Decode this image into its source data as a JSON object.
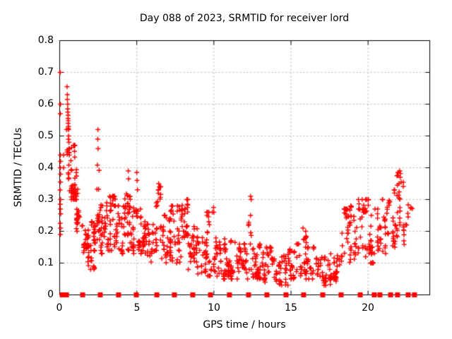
{
  "colors": {
    "marker": "#ff0000",
    "grid": "#b0b0b0",
    "axis": "#000000",
    "background": "#ffffff",
    "text": "#000000"
  },
  "chart_data": {
    "type": "scatter",
    "title": "Day 088 of 2023, SRMTID for receiver lord",
    "xlabel": "GPS time / hours",
    "ylabel": "SRMTID / TECUs",
    "xlim": [
      0,
      24
    ],
    "ylim": [
      0,
      0.8
    ],
    "x_ticks": [
      0,
      5,
      10,
      15,
      20
    ],
    "x_tick_labels": [
      "0",
      "5",
      "10",
      "15",
      "20"
    ],
    "y_ticks": [
      0,
      0.1,
      0.2,
      0.3,
      0.4,
      0.5,
      0.6,
      0.7,
      0.8
    ],
    "y_tick_labels": [
      "0",
      "0.1",
      "0.2",
      "0.3",
      "0.4",
      "0.5",
      "0.6",
      "0.7",
      "0.8"
    ],
    "grid": true,
    "grid_x": [
      5,
      10,
      15,
      20
    ],
    "grid_y": [
      0.1,
      0.2,
      0.3,
      0.4,
      0.5,
      0.6,
      0.7
    ],
    "legend": "none",
    "marker": {
      "shape": "plus",
      "color": "#ff0000",
      "size": 7
    },
    "series": [
      {
        "name": "srmtid-points",
        "render": "binned-scatter",
        "points": [
          [
            0.03,
            0.7
          ],
          [
            0.05,
            0.6
          ],
          [
            0.04,
            0.57
          ],
          [
            0.05,
            0.44
          ],
          [
            0.25,
            0.44
          ],
          [
            0.06,
            0.42
          ],
          [
            0.25,
            0.4
          ],
          [
            0.04,
            0.4
          ],
          [
            0.06,
            0.38
          ],
          [
            0.05,
            0.355
          ],
          [
            0.03,
            0.33
          ],
          [
            0.06,
            0.3
          ],
          [
            0.04,
            0.285
          ],
          [
            0.05,
            0.27
          ],
          [
            0.07,
            0.255
          ],
          [
            0.04,
            0.225
          ],
          [
            0.06,
            0.21
          ],
          [
            0.05,
            0.19
          ],
          [
            0.45,
            0.52
          ],
          [
            0.48,
            0.655
          ],
          [
            0.5,
            0.63
          ],
          [
            0.5,
            0.615
          ],
          [
            0.52,
            0.6
          ],
          [
            0.52,
            0.585
          ],
          [
            0.53,
            0.575
          ],
          [
            0.55,
            0.565
          ],
          [
            0.54,
            0.555
          ],
          [
            0.56,
            0.548
          ],
          [
            0.55,
            0.54
          ],
          [
            0.57,
            0.53
          ],
          [
            0.58,
            0.52
          ],
          [
            0.58,
            0.5
          ],
          [
            0.6,
            0.48
          ],
          [
            0.62,
            0.46
          ],
          [
            0.63,
            0.44
          ],
          [
            2.48,
            0.52
          ],
          [
            2.47,
            0.49
          ],
          [
            2.49,
            0.46
          ],
          [
            4.45,
            0.39
          ],
          [
            4.47,
            0.365
          ],
          [
            5.0,
            0.385
          ],
          [
            5.02,
            0.36
          ],
          [
            6.42,
            0.35
          ],
          [
            6.4,
            0.33
          ],
          [
            8.3,
            0.3
          ],
          [
            8.28,
            0.285
          ],
          [
            9.98,
            0.275
          ],
          [
            10.0,
            0.26
          ],
          [
            12.38,
            0.31
          ],
          [
            12.42,
            0.3
          ],
          [
            15.78,
            0.21
          ],
          [
            18.52,
            0.27
          ],
          [
            18.55,
            0.255
          ],
          [
            19.62,
            0.3
          ],
          [
            21.9,
            0.345
          ],
          [
            22.0,
            0.35
          ],
          [
            22.05,
            0.39
          ],
          [
            22.1,
            0.382
          ],
          [
            22.08,
            0.37
          ],
          [
            22.15,
            0.355
          ]
        ],
        "bins": [
          [
            0.35,
            0.65,
            6,
            0.44,
            0.56
          ],
          [
            0.55,
            0.8,
            12,
            0.3,
            0.46
          ],
          [
            0.65,
            1.1,
            40,
            0.3,
            0.47
          ],
          [
            1.05,
            1.45,
            22,
            0.2,
            0.34
          ],
          [
            1.4,
            1.85,
            26,
            0.11,
            0.26
          ],
          [
            1.8,
            2.25,
            30,
            0.08,
            0.23
          ],
          [
            2.2,
            2.45,
            14,
            0.14,
            0.3
          ],
          [
            2.42,
            2.56,
            12,
            0.2,
            0.5
          ],
          [
            2.55,
            3.1,
            36,
            0.13,
            0.29
          ],
          [
            3.05,
            3.6,
            32,
            0.14,
            0.31
          ],
          [
            3.55,
            4.1,
            30,
            0.13,
            0.28
          ],
          [
            4.05,
            4.5,
            26,
            0.14,
            0.38
          ],
          [
            4.45,
            4.95,
            28,
            0.13,
            0.31
          ],
          [
            4.9,
            5.1,
            8,
            0.24,
            0.37
          ],
          [
            5.05,
            5.6,
            32,
            0.13,
            0.27
          ],
          [
            5.55,
            6.2,
            30,
            0.1,
            0.23
          ],
          [
            6.2,
            6.6,
            24,
            0.14,
            0.34
          ],
          [
            6.55,
            7.2,
            30,
            0.1,
            0.25
          ],
          [
            7.15,
            7.8,
            34,
            0.1,
            0.28
          ],
          [
            7.75,
            8.35,
            38,
            0.12,
            0.3
          ],
          [
            8.3,
            9.0,
            34,
            0.08,
            0.22
          ],
          [
            8.95,
            9.6,
            28,
            0.06,
            0.18
          ],
          [
            9.55,
            10.1,
            24,
            0.06,
            0.26
          ],
          [
            10.05,
            10.8,
            38,
            0.05,
            0.18
          ],
          [
            10.75,
            11.5,
            38,
            0.05,
            0.17
          ],
          [
            11.45,
            12.25,
            40,
            0.05,
            0.16
          ],
          [
            12.2,
            12.55,
            12,
            0.08,
            0.25
          ],
          [
            12.5,
            13.2,
            38,
            0.05,
            0.16
          ],
          [
            13.15,
            14.0,
            38,
            0.04,
            0.15
          ],
          [
            13.95,
            14.8,
            34,
            0.03,
            0.13
          ],
          [
            14.75,
            15.5,
            34,
            0.05,
            0.16
          ],
          [
            15.45,
            16.0,
            24,
            0.06,
            0.2
          ],
          [
            15.95,
            16.8,
            34,
            0.05,
            0.15
          ],
          [
            16.75,
            17.6,
            34,
            0.03,
            0.12
          ],
          [
            17.55,
            18.2,
            28,
            0.04,
            0.13
          ],
          [
            18.15,
            18.7,
            24,
            0.08,
            0.27
          ],
          [
            18.65,
            19.4,
            34,
            0.1,
            0.28
          ],
          [
            19.35,
            20.1,
            34,
            0.12,
            0.3
          ],
          [
            20.05,
            20.8,
            34,
            0.1,
            0.27
          ],
          [
            20.75,
            21.4,
            28,
            0.13,
            0.3
          ],
          [
            21.35,
            21.9,
            24,
            0.15,
            0.33
          ],
          [
            21.85,
            22.3,
            18,
            0.22,
            0.385
          ],
          [
            22.25,
            22.9,
            14,
            0.15,
            0.3
          ]
        ]
      },
      {
        "name": "zero-line-squares",
        "render": "squares",
        "color": "#ff0000",
        "y": 0,
        "x": [
          0.16,
          0.44,
          1.49,
          2.63,
          3.82,
          4.97,
          6.3,
          7.44,
          8.63,
          9.78,
          11.01,
          12.25,
          13.44,
          14.68,
          15.82,
          17.06,
          18.25,
          19.49,
          20.4,
          20.77,
          21.46,
          21.91,
          22.6,
          23.01
        ]
      }
    ]
  }
}
